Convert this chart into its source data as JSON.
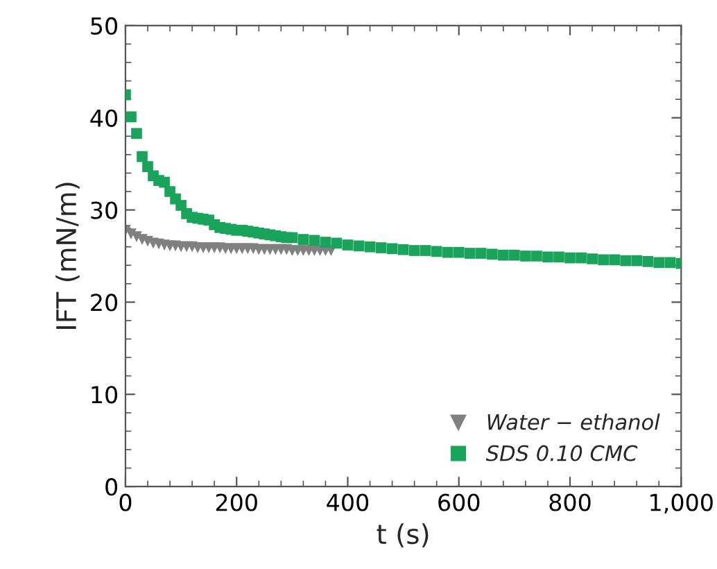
{
  "chart_data": {
    "type": "scatter",
    "xlabel": "t (s)",
    "ylabel": "IFT (mN/m)",
    "series": [
      {
        "name": "Water − ethanol",
        "color": "#808080",
        "marker": "triangle",
        "x": [
          0,
          10,
          20,
          30,
          40,
          50,
          60,
          70,
          80,
          90,
          100,
          110,
          120,
          130,
          140,
          150,
          160,
          170,
          180,
          190,
          200,
          210,
          220,
          230,
          240,
          250,
          260,
          270,
          280,
          290,
          300,
          310,
          320,
          330,
          340,
          350,
          360,
          370
        ],
        "values": [
          27.8,
          27.4,
          27.1,
          26.8,
          26.6,
          26.4,
          26.3,
          26.2,
          26.1,
          26.1,
          26.0,
          26.0,
          26.0,
          25.9,
          25.9,
          25.9,
          25.9,
          25.9,
          25.8,
          25.8,
          25.8,
          25.8,
          25.8,
          25.8,
          25.7,
          25.7,
          25.7,
          25.7,
          25.7,
          25.7,
          25.6,
          25.6,
          25.6,
          25.6,
          25.6,
          25.6,
          25.6,
          25.6
        ]
      },
      {
        "name": "SDS 0.10 CMC",
        "color": "#1aa35a",
        "marker": "square",
        "x": [
          0,
          10,
          20,
          30,
          40,
          50,
          60,
          70,
          80,
          90,
          100,
          110,
          120,
          130,
          140,
          150,
          160,
          170,
          180,
          190,
          200,
          210,
          220,
          230,
          240,
          250,
          260,
          270,
          280,
          290,
          300,
          320,
          340,
          360,
          380,
          400,
          420,
          440,
          460,
          480,
          500,
          520,
          540,
          560,
          580,
          600,
          620,
          640,
          660,
          680,
          700,
          720,
          740,
          760,
          780,
          800,
          820,
          840,
          860,
          880,
          900,
          920,
          940,
          960,
          980,
          1000
        ],
        "values": [
          42.5,
          40.1,
          38.3,
          35.8,
          34.7,
          33.7,
          33.2,
          33.0,
          32.0,
          31.2,
          30.5,
          29.6,
          29.2,
          29.1,
          29.0,
          28.9,
          28.4,
          28.1,
          28.0,
          27.9,
          27.8,
          27.8,
          27.7,
          27.6,
          27.5,
          27.4,
          27.3,
          27.2,
          27.1,
          27.0,
          27.0,
          26.8,
          26.7,
          26.5,
          26.4,
          26.2,
          26.1,
          26.0,
          25.9,
          25.8,
          25.7,
          25.6,
          25.6,
          25.5,
          25.4,
          25.4,
          25.3,
          25.3,
          25.2,
          25.1,
          25.1,
          25.0,
          25.0,
          24.9,
          24.9,
          24.8,
          24.8,
          24.7,
          24.6,
          24.6,
          24.5,
          24.5,
          24.4,
          24.3,
          24.3,
          24.2
        ]
      }
    ],
    "xlim": [
      0,
      1000
    ],
    "xticks": [
      0,
      200,
      400,
      600,
      800,
      {
        "value": 1000,
        "label": "1,000"
      }
    ],
    "ylim": [
      0,
      50
    ],
    "yticks": [
      0,
      10,
      20,
      30,
      40,
      50
    ],
    "grid": false,
    "legend": "bottom right"
  }
}
